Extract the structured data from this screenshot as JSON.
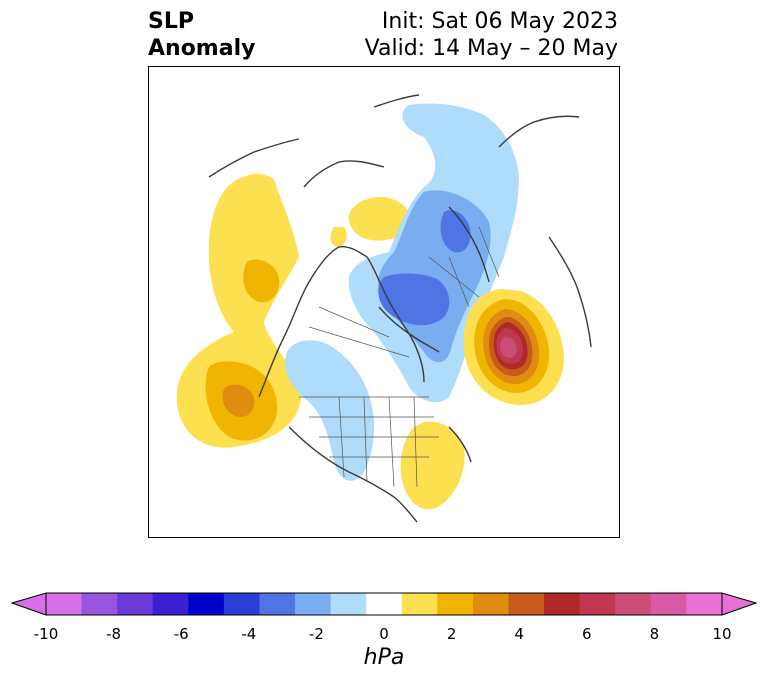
{
  "title": {
    "left_line1": "SLP",
    "left_line2": "Anomaly",
    "right_line1": "Init: Sat 06 May 2023",
    "right_line2": "Valid: 14 May – 20 May"
  },
  "map": {
    "projection": "north-polar-stereographic",
    "variable": "sea level pressure anomaly",
    "features": [
      {
        "name": "positive anomaly over north Atlantic",
        "peak_hPa": 8
      },
      {
        "name": "positive anomaly over northeast Pacific",
        "peak_hPa": 4
      },
      {
        "name": "positive anomaly over eastern United States",
        "peak_hPa": 2
      },
      {
        "name": "negative anomaly over Arctic / Greenland",
        "peak_hPa": -4
      },
      {
        "name": "negative anomaly over central North America",
        "peak_hPa": -2
      }
    ]
  },
  "colorbar": {
    "units": "hPa",
    "ticks": [
      "-10",
      "-8",
      "-6",
      "-4",
      "-2",
      "0",
      "2",
      "4",
      "6",
      "8",
      "10"
    ],
    "levels": [
      -10,
      -9,
      -8,
      -7,
      -6,
      -5,
      -4,
      -3,
      -2,
      -1,
      1,
      2,
      3,
      4,
      5,
      6,
      7,
      8,
      9,
      10
    ],
    "colors": [
      "#d670e6",
      "#9a55e0",
      "#6a3ad8",
      "#3b1fd0",
      "#0000cc",
      "#2a3fd8",
      "#4f74e3",
      "#78adf0",
      "#aedcfa",
      "#ffffff",
      "#fde050",
      "#f0b500",
      "#e08c10",
      "#c85a1a",
      "#b02828",
      "#c03850",
      "#cc4c78",
      "#d85aa6",
      "#e870d6"
    ],
    "extend_low_color": "#d670e6",
    "extend_high_color": "#e870d6"
  }
}
